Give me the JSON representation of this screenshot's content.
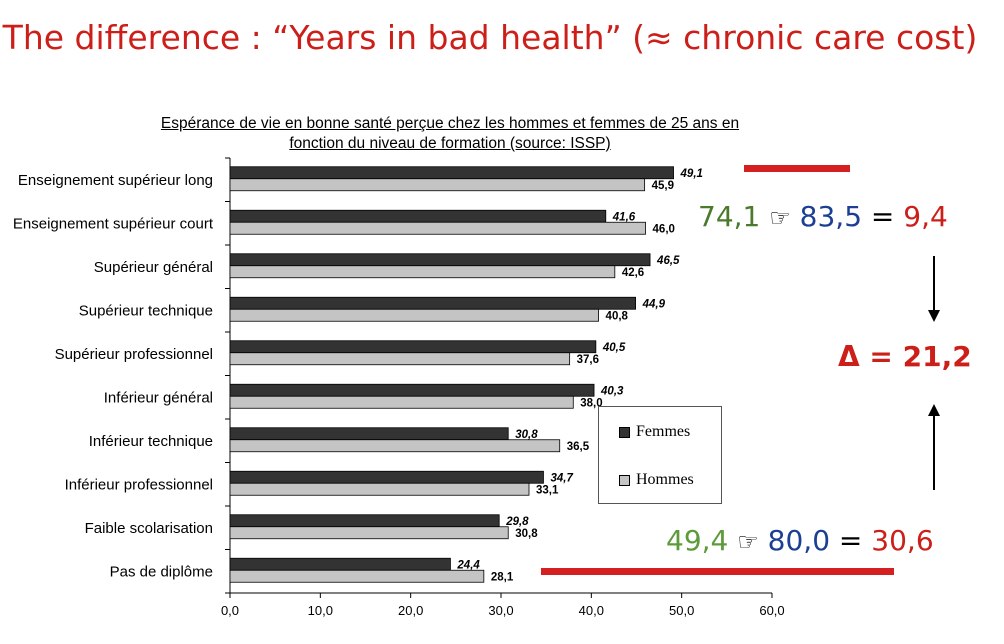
{
  "slide_title": "The difference : “Years in bad health” (≈ chronic care cost)",
  "chart_data": {
    "type": "bar",
    "orientation": "horizontal",
    "title": "Espérance de vie en bonne santé perçue chez les hommes et femmes de 25 ans en fonction du niveau de formation (source: ISSP)",
    "title_lines": [
      "Espérance de vie en bonne santé perçue chez les hommes et femmes de 25 ans en",
      "fonction du niveau de formation (source: ISSP)"
    ],
    "categories": [
      "Enseignement supérieur long",
      "Enseignement supérieur court",
      "Supérieur général",
      "Supérieur technique",
      "Supérieur professionnel",
      "Inférieur général",
      "Inférieur technique",
      "Inférieur professionnel",
      "Faible scolarisation",
      "Pas de diplôme"
    ],
    "series": [
      {
        "name": "Femmes",
        "color": "#333333",
        "values": [
          49.1,
          41.6,
          46.5,
          44.9,
          40.5,
          40.3,
          30.8,
          34.7,
          29.8,
          24.4
        ],
        "labels": [
          "49,1",
          "41,6",
          "46,5",
          "44,9",
          "40,5",
          "40,3",
          "30,8",
          "34,7",
          "29,8",
          "24,4"
        ]
      },
      {
        "name": "Hommes",
        "color": "#c4c4c4",
        "values": [
          45.9,
          46.0,
          42.6,
          40.8,
          37.6,
          38.0,
          36.5,
          33.1,
          30.8,
          28.1
        ],
        "labels": [
          "45,9",
          "46,0",
          "42,6",
          "40,8",
          "37,6",
          "38,0",
          "36,5",
          "33,1",
          "30,8",
          "28,1"
        ]
      }
    ],
    "xlim": [
      0,
      60
    ],
    "ticks": [
      0,
      10,
      20,
      30,
      40,
      50,
      60
    ],
    "tick_labels": [
      "0,0",
      "10,0",
      "20,0",
      "30,0",
      "40,0",
      "50,0",
      "60,0"
    ],
    "grid": false,
    "legend": {
      "position": "lower-right",
      "entries": [
        "Femmes",
        "Hommes"
      ]
    }
  },
  "annotations": {
    "top": {
      "a": "74,1",
      "arrow": "☞",
      "b": "83,5",
      "eq": "=",
      "c": "9,4"
    },
    "bottom": {
      "a": "49,4",
      "arrow": "☞",
      "b": "80,0",
      "eq": "=",
      "c": "30,6"
    },
    "delta": "Δ = 21,2",
    "colors": {
      "a": "#4a7a2b",
      "a_bottom": "#5d9a3a",
      "b": "#1c3f94",
      "c": "#cc1f1a",
      "underline": "#d42020"
    }
  }
}
